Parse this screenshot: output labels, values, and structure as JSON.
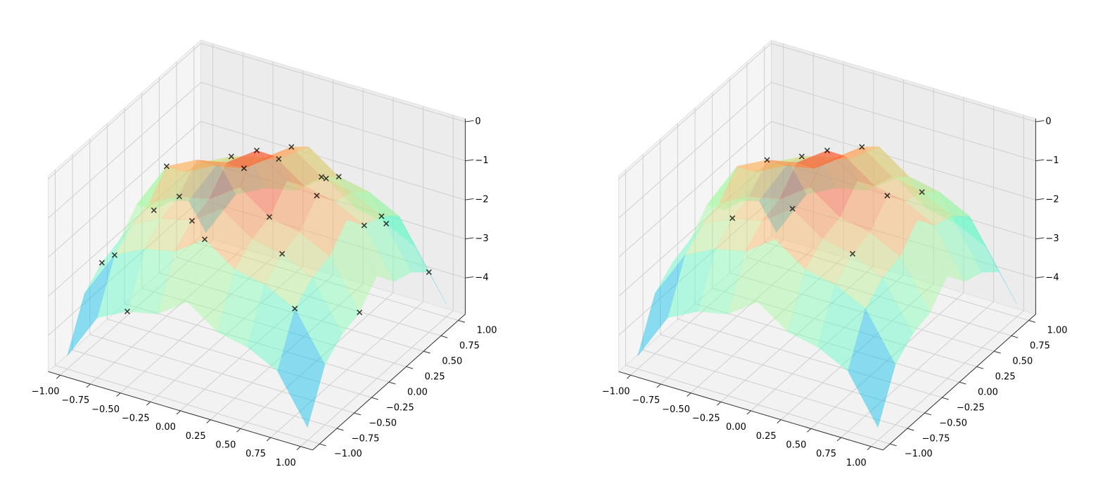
{
  "chart_data": [
    {
      "type": "surface3d",
      "x": [
        -1,
        -0.75,
        -0.5,
        -0.25,
        0,
        0.25,
        0.5,
        0.75,
        1
      ],
      "y": [
        -1,
        -0.75,
        -0.5,
        -0.25,
        0,
        0.25,
        0.5,
        0.75,
        1
      ],
      "z": [
        [
          -4.6,
          -3.39,
          -3,
          -2.84,
          -2.3,
          -2.84,
          -3,
          -3.39,
          -4.6
        ],
        [
          -3.39,
          -2.18,
          -1.79,
          -1.63,
          -1.09,
          -1.63,
          -1.79,
          -2.18,
          -3.39
        ],
        [
          -3,
          -1.79,
          -1.4,
          -1.24,
          -0.7,
          -1.24,
          -1.4,
          -1.79,
          -3
        ],
        [
          -2.84,
          -1.63,
          -1.24,
          -1.08,
          -0.54,
          -1.08,
          -1.24,
          -1.63,
          -2.84
        ],
        [
          -2.3,
          -1.09,
          -0.7,
          -0.54,
          0,
          -0.54,
          -0.7,
          -1.09,
          -2.3
        ],
        [
          -2.84,
          -1.63,
          -1.24,
          -1.08,
          -0.54,
          -1.08,
          -1.24,
          -1.63,
          -2.84
        ],
        [
          -3,
          -1.79,
          -1.4,
          -1.24,
          -0.7,
          -1.24,
          -1.4,
          -1.79,
          -3
        ],
        [
          -3.39,
          -2.18,
          -1.79,
          -1.63,
          -1.09,
          -1.63,
          -1.79,
          -2.18,
          -3.39
        ],
        [
          -4.6,
          -3.39,
          -3,
          -2.84,
          -2.3,
          -2.84,
          -3,
          -3.39,
          -4.6
        ]
      ],
      "colormap": "rainbow",
      "surface_alpha": 0.45,
      "points": {
        "color": "#000000",
        "x": [
          -0.75,
          -0.5,
          0,
          0.25,
          0.75,
          -0.25,
          0.5,
          -1,
          1,
          0,
          0.25,
          -0.5,
          0.75,
          -0.75,
          0,
          0.5,
          -0.25,
          0.5,
          -1,
          0.25,
          -0.5,
          0.75,
          -0.25,
          0,
          1
        ],
        "y": [
          -0.75,
          -0.25,
          0,
          0.5,
          0.25,
          0.75,
          -0.5,
          -0.5,
          0.75,
          -0.75,
          -0.25,
          0.5,
          -0.75,
          0,
          0.5,
          0,
          -0.5,
          1,
          0.25,
          0.75,
          -1,
          0.5,
          0.25,
          1,
          -0.25
        ],
        "z": [
          -2.18,
          -1.24,
          0,
          -1.24,
          -1.63,
          -1.63,
          -1.4,
          -3,
          -3.39,
          -1.09,
          -1.08,
          -1.4,
          -2.18,
          -1.09,
          -0.7,
          -0.7,
          -1.24,
          -3,
          -2.84,
          -1.63,
          -3,
          -1.79,
          -1.08,
          -2.3,
          -2.84
        ]
      },
      "xlim": [
        -1.1,
        1.1
      ],
      "ylim": [
        -1.1,
        1.1
      ],
      "zlim": [
        -4.93,
        0.08
      ],
      "xticks": [
        {
          "value": -1,
          "label": "−1.00"
        },
        {
          "value": -0.75,
          "label": "−0.75"
        },
        {
          "value": -0.5,
          "label": "−0.50"
        },
        {
          "value": -0.25,
          "label": "−0.25"
        },
        {
          "value": 0,
          "label": "0.00"
        },
        {
          "value": 0.25,
          "label": "0.25"
        },
        {
          "value": 0.5,
          "label": "0.50"
        },
        {
          "value": 0.75,
          "label": "0.75"
        },
        {
          "value": 1,
          "label": "1.00"
        }
      ],
      "yticks": [
        {
          "value": -1,
          "label": "−1.00"
        },
        {
          "value": -0.75,
          "label": "−0.75"
        },
        {
          "value": -0.5,
          "label": "−0.50"
        },
        {
          "value": -0.25,
          "label": "−0.25"
        },
        {
          "value": 0,
          "label": "0.00"
        },
        {
          "value": 0.25,
          "label": "0.25"
        },
        {
          "value": 0.5,
          "label": "0.50"
        },
        {
          "value": 0.75,
          "label": "0.75"
        },
        {
          "value": 1,
          "label": "1.00"
        }
      ],
      "zticks": [
        {
          "value": -4,
          "label": "−4"
        },
        {
          "value": -3,
          "label": "−3"
        },
        {
          "value": -2,
          "label": "−2"
        },
        {
          "value": -1,
          "label": "−1"
        },
        0
      ],
      "grid": true
    },
    {
      "type": "surface3d",
      "x": [
        -1,
        -0.75,
        -0.5,
        -0.25,
        0,
        0.25,
        0.5,
        0.75,
        1
      ],
      "y": [
        -1,
        -0.75,
        -0.5,
        -0.25,
        0,
        0.25,
        0.5,
        0.75,
        1
      ],
      "z": [
        [
          -4.6,
          -3.39,
          -3,
          -2.84,
          -2.3,
          -2.84,
          -3,
          -3.39,
          -4.6
        ],
        [
          -3.39,
          -2.18,
          -1.79,
          -1.63,
          -1.09,
          -1.63,
          -1.79,
          -2.18,
          -3.39
        ],
        [
          -3,
          -1.79,
          -1.4,
          -1.24,
          -0.7,
          -1.24,
          -1.4,
          -1.79,
          -3
        ],
        [
          -2.84,
          -1.63,
          -1.24,
          -1.08,
          -0.54,
          -1.08,
          -1.24,
          -1.63,
          -2.84
        ],
        [
          -2.3,
          -1.09,
          -0.7,
          -0.54,
          0,
          -0.54,
          -0.7,
          -1.09,
          -2.3
        ],
        [
          -2.84,
          -1.63,
          -1.24,
          -1.08,
          -0.54,
          -1.08,
          -1.24,
          -1.63,
          -2.84
        ],
        [
          -3,
          -1.79,
          -1.4,
          -1.24,
          -0.7,
          -1.24,
          -1.4,
          -1.79,
          -3
        ],
        [
          -3.39,
          -2.18,
          -1.79,
          -1.63,
          -1.09,
          -1.63,
          -1.79,
          -2.18,
          -3.39
        ],
        [
          -4.6,
          -3.39,
          -3,
          -2.84,
          -2.3,
          -2.84,
          -3,
          -3.39,
          -4.6
        ]
      ],
      "colormap": "rainbow",
      "surface_alpha": 0.45,
      "points": {
        "color": "#000000",
        "x": [
          0,
          0,
          0.5,
          -0.5,
          0,
          0.5,
          -0.5,
          0.5,
          -0.5
        ],
        "y": [
          0,
          0.5,
          0,
          0,
          -0.5,
          0.5,
          0.5,
          -0.5,
          -0.5
        ],
        "z": [
          0,
          -0.7,
          -0.7,
          -0.7,
          -0.7,
          -1.4,
          -1.4,
          -1.4,
          -1.4
        ]
      },
      "xlim": [
        -1.1,
        1.1
      ],
      "ylim": [
        -1.1,
        1.1
      ],
      "zlim": [
        -4.93,
        0.08
      ],
      "xticks": [
        {
          "value": -1,
          "label": "−1.00"
        },
        {
          "value": -0.75,
          "label": "−0.75"
        },
        {
          "value": -0.5,
          "label": "−0.50"
        },
        {
          "value": -0.25,
          "label": "−0.25"
        },
        {
          "value": 0,
          "label": "0.00"
        },
        {
          "value": 0.25,
          "label": "0.25"
        },
        {
          "value": 0.5,
          "label": "0.50"
        },
        {
          "value": 0.75,
          "label": "0.75"
        },
        {
          "value": 1,
          "label": "1.00"
        }
      ],
      "yticks": [
        {
          "value": -1,
          "label": "−1.00"
        },
        {
          "value": -0.75,
          "label": "−0.75"
        },
        {
          "value": -0.5,
          "label": "−0.50"
        },
        {
          "value": -0.25,
          "label": "−0.25"
        },
        {
          "value": 0,
          "label": "0.00"
        },
        {
          "value": 0.25,
          "label": "0.25"
        },
        {
          "value": 0.5,
          "label": "0.50"
        },
        {
          "value": 0.75,
          "label": "0.75"
        },
        {
          "value": 1,
          "label": "1.00"
        }
      ],
      "zticks": [
        {
          "value": -4,
          "label": "−4"
        },
        {
          "value": -3,
          "label": "−3"
        },
        {
          "value": -2,
          "label": "−2"
        },
        {
          "value": -1,
          "label": "−1"
        },
        0
      ],
      "grid": true
    }
  ]
}
